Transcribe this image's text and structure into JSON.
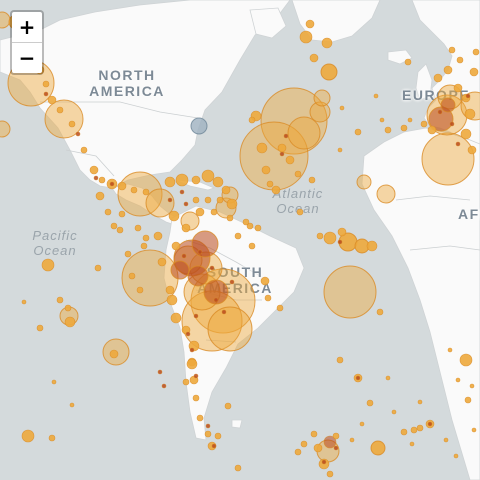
{
  "controls": {
    "zoom_in": "+",
    "zoom_out": "−"
  },
  "labels": {
    "north_america": "NORTH\nAMERICA",
    "south_america": "SOUTH\nAMERICA",
    "europe": "EUROPE",
    "africa": "AFRICA",
    "pacific": "Pacific\nOcean",
    "atlantic": "Atlantic\nOcean"
  },
  "colors": {
    "ocean": "#d4dadc",
    "land": "#fafafa",
    "border": "#c8ccce",
    "marker_light": "#eda83c",
    "marker_dark": "#b94a1e",
    "marker_blue": "#9fb1c0"
  }
}
